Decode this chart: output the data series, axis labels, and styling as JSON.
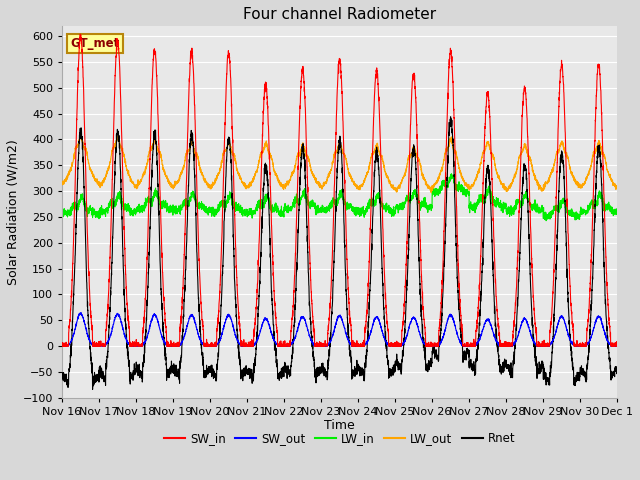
{
  "title": "Four channel Radiometer",
  "xlabel": "Time",
  "ylabel": "Solar Radiation (W/m2)",
  "ylim": [
    -100,
    620
  ],
  "n_days": 15,
  "background_color": "#d8d8d8",
  "plot_bg_color": "#e8e8e8",
  "grid_color": "white",
  "legend_label": "GT_met",
  "legend_label_color": "#8B0000",
  "legend_bg": "#ffff99",
  "legend_border": "#b8860b",
  "xtick_labels": [
    "Nov 16",
    "Nov 17",
    "Nov 18",
    "Nov 19",
    "Nov 20",
    "Nov 21",
    "Nov 22",
    "Nov 23",
    "Nov 24",
    "Nov 25",
    "Nov 26",
    "Nov 27",
    "Nov 28",
    "Nov 29",
    "Nov 30",
    "Dec 1"
  ],
  "series": {
    "SW_in": {
      "color": "#ff0000",
      "lw": 0.8
    },
    "SW_out": {
      "color": "#0000ff",
      "lw": 0.8
    },
    "LW_in": {
      "color": "#00ee00",
      "lw": 0.8
    },
    "LW_out": {
      "color": "#ffa500",
      "lw": 0.8
    },
    "Rnet": {
      "color": "#000000",
      "lw": 0.8
    }
  },
  "sw_peaks": [
    600,
    590,
    575,
    570,
    568,
    507,
    535,
    555,
    533,
    527,
    571,
    490,
    500,
    545,
    545
  ],
  "lw_out_base_night": [
    315,
    310,
    310,
    310,
    308,
    308,
    310,
    308,
    305,
    302,
    308,
    305,
    302,
    310,
    308
  ],
  "lw_out_peak": [
    400,
    400,
    395,
    390,
    390,
    388,
    385,
    388,
    385,
    380,
    395,
    390,
    385,
    390,
    390
  ],
  "lw_in_base": [
    255,
    260,
    265,
    263,
    260,
    258,
    265,
    263,
    260,
    268,
    298,
    270,
    262,
    250,
    260
  ]
}
